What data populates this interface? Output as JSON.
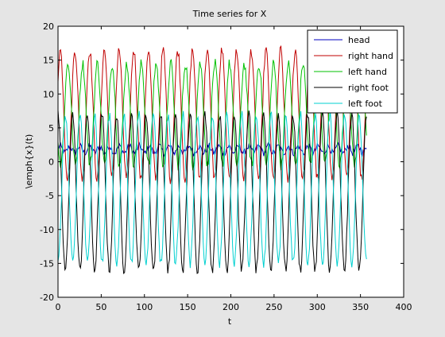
{
  "chart_data": {
    "type": "line",
    "title": "Time series for X",
    "xlabel": "t",
    "ylabel": "\\emph{x}(t)",
    "xlim": [
      0,
      400
    ],
    "ylim": [
      -20,
      20
    ],
    "xticks": [
      0,
      50,
      100,
      150,
      200,
      250,
      300,
      350,
      400
    ],
    "yticks": [
      -20,
      -15,
      -10,
      -5,
      0,
      5,
      10,
      15,
      20
    ],
    "grid": false,
    "legend_position": "top-right",
    "n_samples": 357,
    "series": [
      {
        "name": "head",
        "color": "#0000c0",
        "line": {
          "kind": "sine",
          "mean": 1.8,
          "amplitude": 0.5,
          "period": 11.5,
          "phase": 0.4,
          "noise": 0.5,
          "end": 357
        }
      },
      {
        "name": "right hand",
        "color": "#c00000",
        "line": {
          "kind": "sine",
          "mean": 7.0,
          "amplitude": 9.5,
          "period": 17.0,
          "phase": 0.6,
          "noise": 0.8,
          "end": 357
        }
      },
      {
        "name": "left hand",
        "color": "#00c000",
        "line": {
          "kind": "sine",
          "mean": 7.0,
          "amplitude": 7.5,
          "period": 17.0,
          "phase": 3.6,
          "noise": 0.8,
          "end": 357
        }
      },
      {
        "name": "right foot",
        "color": "#000000",
        "line": {
          "kind": "sine",
          "mean": -4.5,
          "amplitude": 11.5,
          "period": 17.0,
          "phase": 1.6,
          "noise": 0.7,
          "end": 357
        }
      },
      {
        "name": "left foot",
        "color": "#00d0d0",
        "line": {
          "kind": "sine",
          "mean": -4.0,
          "amplitude": 11.0,
          "period": 17.0,
          "phase": 4.7,
          "noise": 0.7,
          "end": 357
        }
      }
    ]
  }
}
